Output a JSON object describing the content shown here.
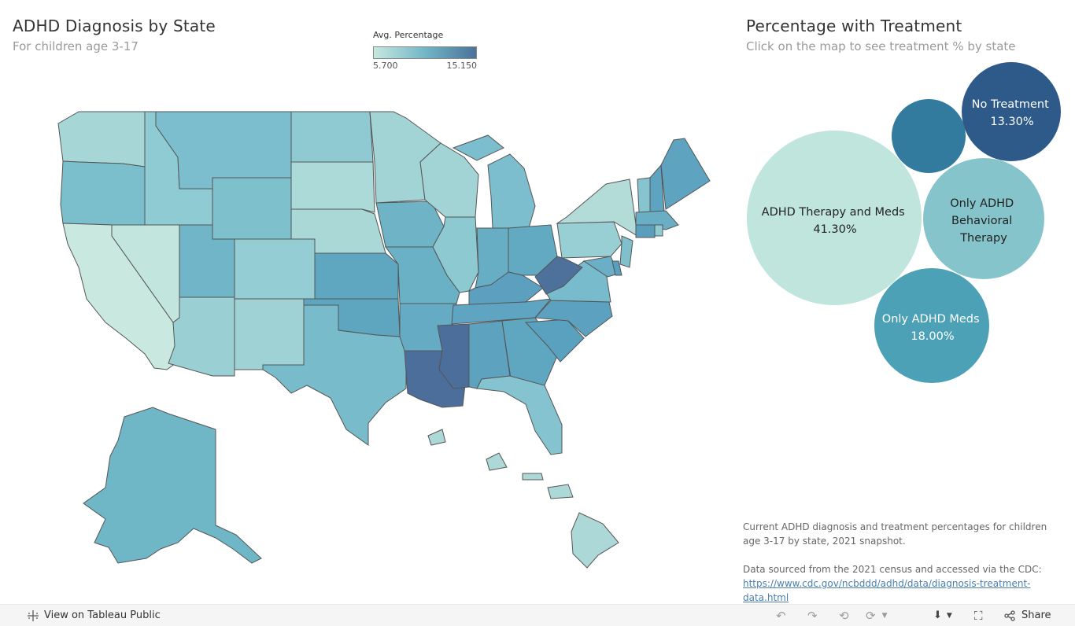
{
  "left_panel": {
    "title": "ADHD Diagnosis by State",
    "subtitle": "For children age 3-17"
  },
  "legend": {
    "title": "Avg. Percentage",
    "min": "5.700",
    "max": "15.150",
    "colors": [
      "#c6e8df",
      "#73b6c7",
      "#4a739a"
    ]
  },
  "right_panel": {
    "title": "Percentage with Treatment",
    "subtitle": "Click on the map to see treatment % by state"
  },
  "chart_data": {
    "type": "bubble",
    "series": [
      {
        "name": "ADHD Therapy and Meds",
        "value": "41.30%",
        "color": "#bfe5dc"
      },
      {
        "name": "Only ADHD Behavioral Therapy",
        "value": "",
        "color": "#86c4cc"
      },
      {
        "name": "Only ADHD Meds",
        "value": "18.00%",
        "color": "#4ca1b6"
      },
      {
        "name": "No Treatment",
        "value": "13.30%",
        "color": "#2d5a88"
      },
      {
        "name": "",
        "value": "",
        "color": "#327a9e"
      }
    ]
  },
  "bubble_labels": {
    "therapy_meds": [
      "ADHD Therapy and Meds",
      "41.30%"
    ],
    "behavioral": [
      "Only ADHD",
      "Behavioral",
      "Therapy"
    ],
    "meds": [
      "Only ADHD Meds",
      "18.00%"
    ],
    "none": [
      "No Treatment",
      "13.30%"
    ]
  },
  "notes": {
    "description": "Current ADHD diagnosis and treatment percentages for children age 3-17 by state, 2021 snapshot.",
    "source": "Data sourced from the 2021 census and accessed via the CDC:",
    "link": "https://www.cdc.gov/ncbddd/adhd/data/diagnosis-treatment-data.html"
  },
  "toolbar": {
    "view_label": "View on Tableau Public",
    "share_label": "Share",
    "icons": [
      "undo-icon",
      "redo-icon",
      "revert-icon",
      "refresh-icon",
      "download-icon",
      "fullscreen-icon",
      "share-icon",
      "tableau-logo-icon"
    ]
  }
}
